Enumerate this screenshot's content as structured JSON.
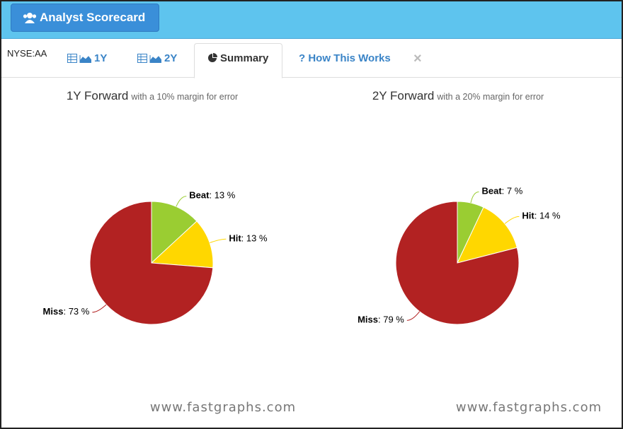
{
  "header": {
    "button": "Analyst Scorecard"
  },
  "tabs": {
    "ticker": "NYSE:AA",
    "items": [
      "1Y",
      "2Y",
      "Summary",
      "? How This Works"
    ],
    "close": "×"
  },
  "watermark": [
    "www.fastgraphs.com",
    "www.fastgraphs.com"
  ],
  "chart_data": [
    {
      "type": "pie",
      "title": "1Y Forward",
      "subtitle": "with a 10% margin for error",
      "categories": [
        "Beat",
        "Hit",
        "Miss"
      ],
      "values": [
        13,
        13,
        73
      ],
      "value_labels": [
        "13 %",
        "13 %",
        "73 %"
      ],
      "colors": [
        "#9acd32",
        "#ffd700",
        "#b22222"
      ]
    },
    {
      "type": "pie",
      "title": "2Y Forward",
      "subtitle": "with a 20% margin for error",
      "categories": [
        "Beat",
        "Hit",
        "Miss"
      ],
      "values": [
        7,
        14,
        79
      ],
      "value_labels": [
        "7 %",
        "14 %",
        "79 %"
      ],
      "colors": [
        "#9acd32",
        "#ffd700",
        "#b22222"
      ]
    }
  ]
}
